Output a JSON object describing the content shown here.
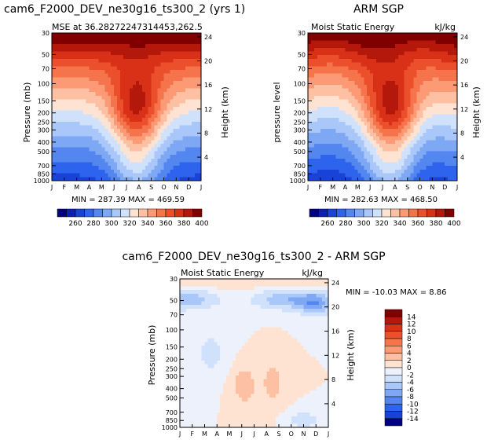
{
  "chart_data": [
    {
      "type": "heatmap",
      "id": "model",
      "title": "cam6_F2000_DEV_ne30g16_ts300_2 (yrs 1)",
      "subtitle_left": "MSE at 36.28272247314453,262.5",
      "subtitle_right": "",
      "ylabel": "Pressure (mb)",
      "ylabel_right": "Height (km)",
      "months": [
        "J",
        "F",
        "M",
        "A",
        "M",
        "J",
        "J",
        "A",
        "S",
        "O",
        "N",
        "D",
        "J"
      ],
      "pressure_ticks": [
        30,
        50,
        70,
        100,
        150,
        200,
        250,
        300,
        400,
        500,
        700,
        850,
        1000
      ],
      "height_ticks": [
        24,
        20,
        16,
        12,
        8,
        4
      ],
      "stats": "MIN = 287.39   MAX = 469.59",
      "colorbar_labels": [
        "260",
        "280",
        "300",
        "320",
        "340",
        "360",
        "380",
        "400"
      ],
      "colors": [
        "#00007f",
        "#0c1fb0",
        "#1842d8",
        "#2e63ee",
        "#5486f0",
        "#7ea7f4",
        "#a9c7f8",
        "#d0e1fb",
        "#ffe3d2",
        "#fdc0a2",
        "#fb9a74",
        "#f6744c",
        "#ec4f2c",
        "#d93118",
        "#b4180a",
        "#800000"
      ],
      "zlim": [
        250,
        410
      ]
    },
    {
      "type": "heatmap",
      "id": "obs",
      "title": "ARM SGP",
      "subtitle_left": "Moist Static Energy",
      "subtitle_right": "kJ/kg",
      "ylabel": "pressure level",
      "ylabel_right": "Height (km)",
      "months": [
        "J",
        "F",
        "M",
        "A",
        "M",
        "J",
        "J",
        "A",
        "S",
        "O",
        "N",
        "D",
        "J"
      ],
      "pressure_ticks": [
        30,
        50,
        70,
        100,
        150,
        200,
        250,
        300,
        400,
        500,
        700,
        850,
        1000
      ],
      "height_ticks": [
        24,
        20,
        16,
        12,
        8,
        4
      ],
      "stats": "MIN = 282.63   MAX = 468.50",
      "colorbar_labels": [
        "260",
        "280",
        "300",
        "320",
        "340",
        "360",
        "380",
        "400"
      ],
      "colors": [
        "#00007f",
        "#0c1fb0",
        "#1842d8",
        "#2e63ee",
        "#5486f0",
        "#7ea7f4",
        "#a9c7f8",
        "#d0e1fb",
        "#ffe3d2",
        "#fdc0a2",
        "#fb9a74",
        "#f6744c",
        "#ec4f2c",
        "#d93118",
        "#b4180a",
        "#800000"
      ],
      "zlim": [
        250,
        410
      ]
    },
    {
      "type": "heatmap",
      "id": "diff",
      "title": "cam6_F2000_DEV_ne30g16_ts300_2 - ARM SGP",
      "subtitle_left": "Moist Static Energy",
      "subtitle_right": "kJ/kg",
      "ylabel": "Pressure (mb)",
      "ylabel_right": "Height (km)",
      "months": [
        "J",
        "F",
        "M",
        "A",
        "M",
        "J",
        "J",
        "A",
        "S",
        "O",
        "N",
        "D",
        "J"
      ],
      "pressure_ticks": [
        30,
        50,
        70,
        100,
        150,
        200,
        250,
        300,
        400,
        500,
        700,
        850,
        1000
      ],
      "height_ticks": [
        24,
        20,
        16,
        12,
        8,
        4
      ],
      "stats": "MIN = -10.03  MAX =    8.86",
      "colorbar_labels": [
        "14",
        "12",
        "10",
        "8",
        "6",
        "4",
        "2",
        "0",
        "-2",
        "-4",
        "-6",
        "-8",
        "-10",
        "-12",
        "-14"
      ],
      "colors": [
        "#800000",
        "#b4180a",
        "#d93118",
        "#ec4f2c",
        "#f6744c",
        "#fb9a74",
        "#fdc0a2",
        "#ffe3d2",
        "#ecf1fc",
        "#d0e1fb",
        "#a9c7f8",
        "#7ea7f4",
        "#5486f0",
        "#2e63ee",
        "#1842d8",
        "#00007f"
      ],
      "zlim": [
        -16,
        16
      ]
    }
  ]
}
